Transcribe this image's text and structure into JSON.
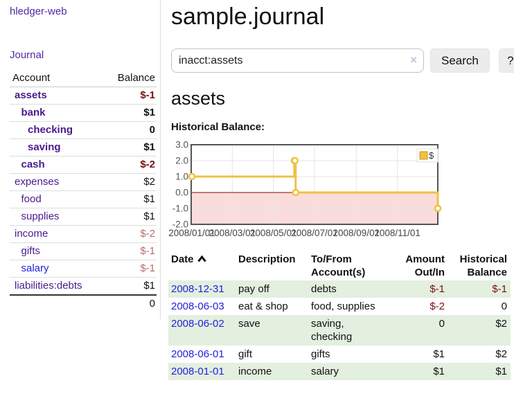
{
  "colors": {
    "accent_purple": "#4a1a8c",
    "nav_purple": "#5227a5",
    "link_blue": "#2222dd",
    "negative": "#7a1010",
    "negative_faded": "#bb6a6a",
    "row_shade": "#e3efdf",
    "chart_line": "#edc240",
    "chart_negative_fill": "#fbdcdc",
    "chart_zero_line": "#8b0000"
  },
  "app": {
    "title": "hledger-web"
  },
  "sidebar": {
    "journal_link": "Journal",
    "accounts_header": {
      "account": "Account",
      "balance": "Balance"
    },
    "accounts": [
      {
        "name": "assets",
        "indent": 0,
        "bold": true,
        "name_color": "purple",
        "balance": "$-1",
        "balance_color": "negative"
      },
      {
        "name": "bank",
        "indent": 1,
        "bold": true,
        "name_color": "purple",
        "balance": "$1",
        "balance_color": "normal"
      },
      {
        "name": "checking",
        "indent": 2,
        "bold": true,
        "name_color": "purple",
        "balance": "0",
        "balance_color": "normal"
      },
      {
        "name": "saving",
        "indent": 2,
        "bold": true,
        "name_color": "purple",
        "balance": "$1",
        "balance_color": "normal"
      },
      {
        "name": "cash",
        "indent": 1,
        "bold": true,
        "name_color": "purple",
        "balance": "$-2",
        "balance_color": "negative"
      },
      {
        "name": "expenses",
        "indent": 0,
        "bold": false,
        "name_color": "purple",
        "balance": "$2",
        "balance_color": "normal"
      },
      {
        "name": "food",
        "indent": 1,
        "bold": false,
        "name_color": "purple",
        "balance": "$1",
        "balance_color": "normal"
      },
      {
        "name": "supplies",
        "indent": 1,
        "bold": false,
        "name_color": "purple",
        "balance": "$1",
        "balance_color": "normal"
      },
      {
        "name": "income",
        "indent": 0,
        "bold": false,
        "name_color": "purple",
        "balance": "$-2",
        "balance_color": "negative-faded"
      },
      {
        "name": "gifts",
        "indent": 1,
        "bold": false,
        "name_color": "purple",
        "balance": "$-1",
        "balance_color": "negative-faded"
      },
      {
        "name": "salary",
        "indent": 1,
        "bold": false,
        "name_color": "blue",
        "balance": "$-1",
        "balance_color": "negative-faded"
      },
      {
        "name": "liabilities:debts",
        "indent": 0,
        "bold": false,
        "name_color": "purple",
        "balance": "$1",
        "balance_color": "normal"
      }
    ],
    "total": "0"
  },
  "main": {
    "title": "sample.journal",
    "search": {
      "value": "inacct:assets",
      "clear_icon": "×",
      "button_label": "Search",
      "help_label": "?"
    },
    "account_heading": "assets",
    "chart_title": "Historical Balance:"
  },
  "chart_data": {
    "type": "line",
    "step": true,
    "title": "Historical Balance",
    "legend_position": "top-right",
    "legend_entries": [
      "$"
    ],
    "series": [
      {
        "name": "$",
        "points": [
          [
            "2008-01-01",
            1
          ],
          [
            "2008-06-01",
            2
          ],
          [
            "2008-06-02",
            2
          ],
          [
            "2008-06-03",
            0
          ],
          [
            "2008-12-31",
            -1
          ]
        ]
      }
    ],
    "xlim": [
      "2008-01-01",
      "2008-12-31"
    ],
    "ylim": [
      -2,
      3
    ],
    "x_tick_labels": [
      "2008/01/01",
      "2008/03/01",
      "2008/05/01",
      "2008/07/01",
      "2008/09/01",
      "2008/11/01"
    ],
    "y_tick_labels": [
      "3.0",
      "2.0",
      "1.0",
      "0.0",
      "-1.0",
      "-2.0"
    ],
    "grid": true,
    "negative_region_shaded": true
  },
  "register_table": {
    "columns": [
      {
        "line1": "Date",
        "line2": "",
        "align": "left",
        "sortable": true
      },
      {
        "line1": "Description",
        "line2": "",
        "align": "left"
      },
      {
        "line1": "To/From",
        "line2": "Account(s)",
        "align": "left"
      },
      {
        "line1": "Amount",
        "line2": "Out/In",
        "align": "right"
      },
      {
        "line1": "Historical",
        "line2": "Balance",
        "align": "right"
      }
    ],
    "rows": [
      {
        "date": "2008-12-31",
        "description": "pay off",
        "accounts": "debts",
        "amount": "$-1",
        "balance": "$-1"
      },
      {
        "date": "2008-06-03",
        "description": "eat & shop",
        "accounts": "food, supplies",
        "amount": "$-2",
        "balance": "0"
      },
      {
        "date": "2008-06-02",
        "description": "save",
        "accounts": "saving, checking",
        "amount": "0",
        "balance": "$2"
      },
      {
        "date": "2008-06-01",
        "description": "gift",
        "accounts": "gifts",
        "amount": "$1",
        "balance": "$2"
      },
      {
        "date": "2008-01-01",
        "description": "income",
        "accounts": "salary",
        "amount": "$1",
        "balance": "$1"
      }
    ]
  }
}
